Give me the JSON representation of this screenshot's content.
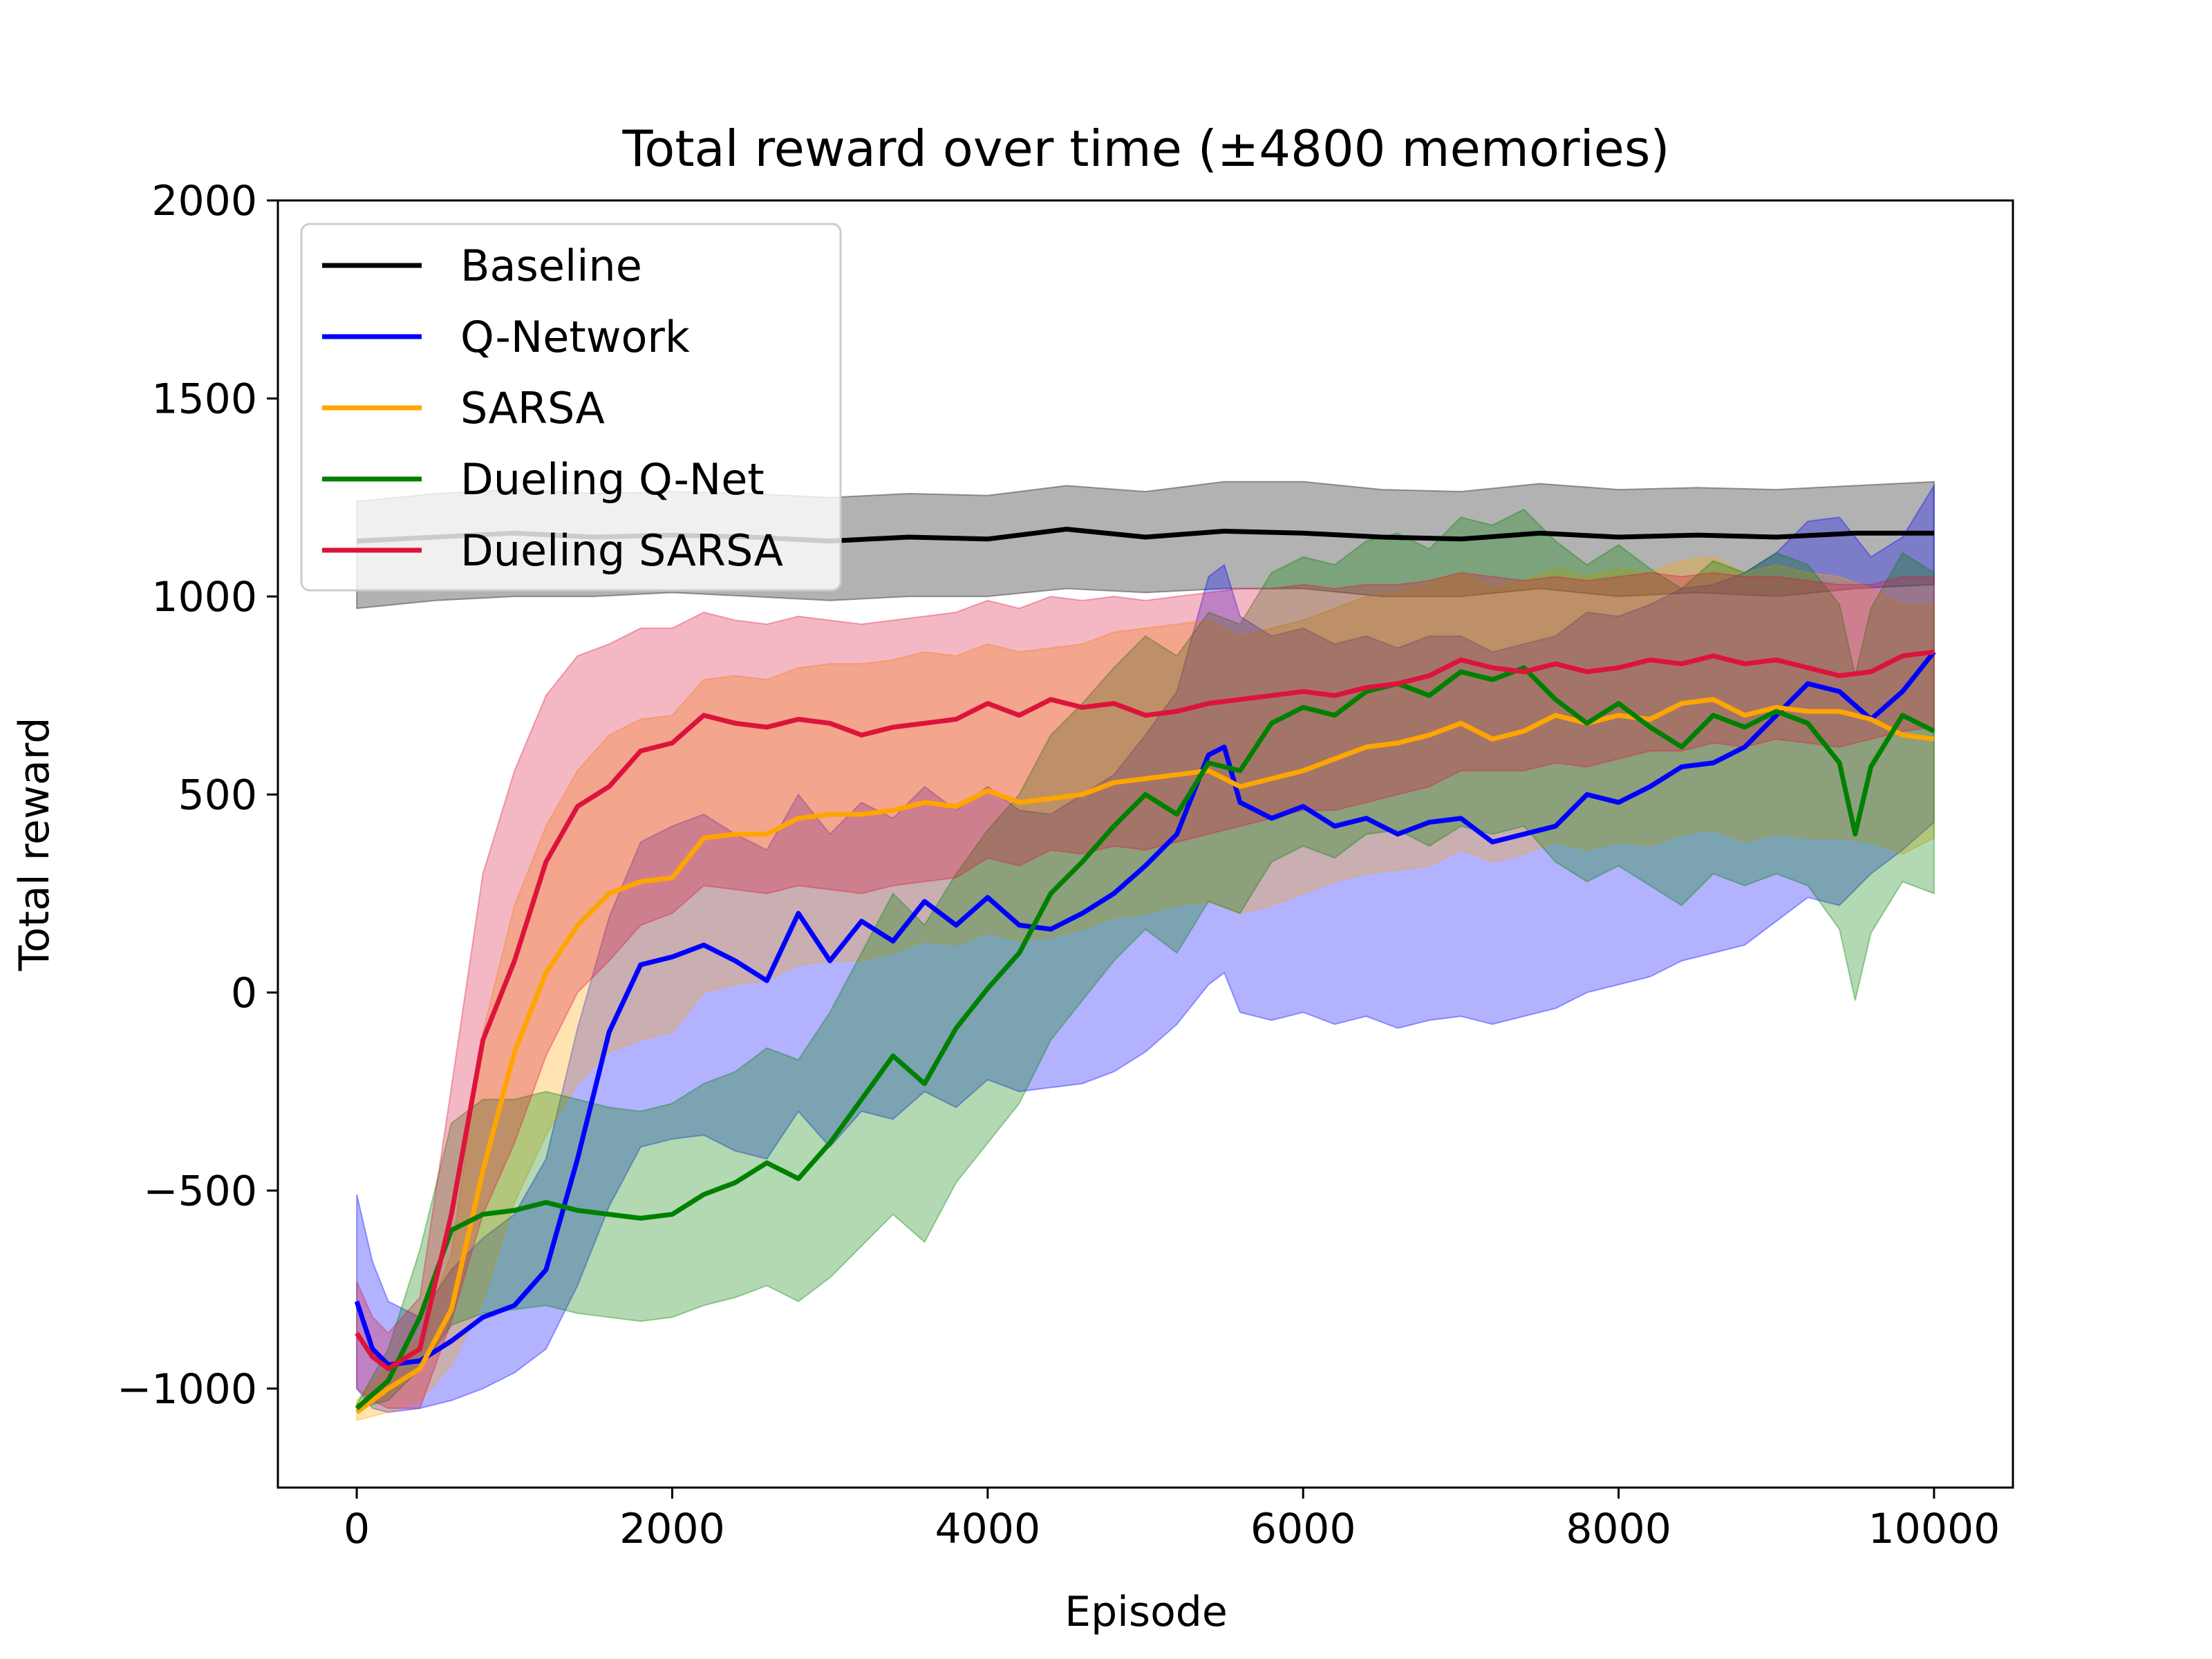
{
  "chart_data": {
    "type": "line",
    "title": "Total reward over time (±4800 memories)",
    "xlabel": "Episode",
    "ylabel": "Total reward",
    "xlim": [
      -500,
      10500
    ],
    "ylim": [
      -1250,
      2000
    ],
    "xticks": [
      0,
      2000,
      4000,
      6000,
      8000,
      10000
    ],
    "yticks": [
      -1000,
      -500,
      0,
      500,
      1000,
      1500,
      2000
    ],
    "xtick_labels": [
      "0",
      "2000",
      "4000",
      "6000",
      "8000",
      "10000"
    ],
    "ytick_labels": [
      "−1000",
      "−500",
      "0",
      "500",
      "1000",
      "1500",
      "2000"
    ],
    "grid": false,
    "legend_position": "upper-left",
    "series": [
      {
        "name": "Baseline",
        "color": "#000000",
        "x": [
          0,
          500,
          1000,
          1500,
          2000,
          2500,
          3000,
          3500,
          4000,
          4500,
          5000,
          5500,
          6000,
          6500,
          7000,
          7500,
          8000,
          8500,
          9000,
          9500,
          10000
        ],
        "y": [
          1140,
          1150,
          1160,
          1150,
          1155,
          1150,
          1140,
          1150,
          1145,
          1170,
          1150,
          1165,
          1160,
          1150,
          1145,
          1160,
          1150,
          1155,
          1150,
          1160,
          1160
        ],
        "lower": [
          970,
          990,
          1000,
          1000,
          1010,
          1000,
          990,
          1000,
          1000,
          1020,
          1010,
          1020,
          1020,
          1000,
          1000,
          1020,
          1000,
          1010,
          1000,
          1020,
          1030
        ],
        "upper": [
          1240,
          1260,
          1270,
          1260,
          1265,
          1260,
          1250,
          1260,
          1255,
          1280,
          1265,
          1290,
          1290,
          1270,
          1265,
          1285,
          1270,
          1275,
          1270,
          1280,
          1290
        ]
      },
      {
        "name": "Q-Network",
        "color": "#0000ff",
        "x": [
          0,
          100,
          200,
          400,
          600,
          800,
          1000,
          1200,
          1400,
          1600,
          1800,
          2000,
          2200,
          2400,
          2600,
          2800,
          3000,
          3200,
          3400,
          3600,
          3800,
          4000,
          4200,
          4400,
          4600,
          4800,
          5000,
          5200,
          5400,
          5500,
          5600,
          5800,
          6000,
          6200,
          6400,
          6600,
          6800,
          7000,
          7200,
          7400,
          7600,
          7800,
          8000,
          8200,
          8400,
          8600,
          8800,
          9000,
          9200,
          9400,
          9600,
          9800,
          10000
        ],
        "y": [
          -780,
          -900,
          -940,
          -930,
          -880,
          -820,
          -790,
          -700,
          -420,
          -100,
          70,
          90,
          120,
          80,
          30,
          200,
          80,
          180,
          130,
          230,
          170,
          240,
          170,
          160,
          200,
          250,
          320,
          400,
          600,
          620,
          480,
          440,
          470,
          420,
          440,
          400,
          430,
          440,
          380,
          400,
          420,
          500,
          480,
          520,
          570,
          580,
          620,
          700,
          780,
          760,
          690,
          760,
          860
        ],
        "lower": [
          -1000,
          -1050,
          -1060,
          -1050,
          -1030,
          -1000,
          -960,
          -900,
          -740,
          -540,
          -390,
          -370,
          -360,
          -400,
          -420,
          -300,
          -390,
          -300,
          -320,
          -250,
          -290,
          -220,
          -250,
          -240,
          -230,
          -200,
          -150,
          -80,
          20,
          50,
          -50,
          -70,
          -50,
          -80,
          -60,
          -90,
          -70,
          -60,
          -80,
          -60,
          -40,
          0,
          20,
          40,
          80,
          100,
          120,
          180,
          240,
          220,
          300,
          360,
          430
        ],
        "upper": [
          -510,
          -680,
          -780,
          -820,
          -700,
          -620,
          -560,
          -420,
          -90,
          190,
          380,
          420,
          450,
          400,
          360,
          500,
          400,
          480,
          440,
          520,
          460,
          520,
          460,
          450,
          500,
          550,
          650,
          760,
          1050,
          1080,
          950,
          900,
          920,
          880,
          900,
          870,
          900,
          900,
          860,
          880,
          900,
          960,
          950,
          980,
          1020,
          1030,
          1060,
          1110,
          1190,
          1200,
          1100,
          1150,
          1280
        ]
      },
      {
        "name": "SARSA",
        "color": "#ffa500",
        "x": [
          0,
          200,
          400,
          600,
          800,
          1000,
          1200,
          1400,
          1600,
          1800,
          2000,
          2200,
          2400,
          2600,
          2800,
          3000,
          3200,
          3400,
          3600,
          3800,
          4000,
          4200,
          4400,
          4600,
          4800,
          5000,
          5200,
          5400,
          5600,
          5800,
          6000,
          6200,
          6400,
          6600,
          6800,
          7000,
          7200,
          7400,
          7600,
          7800,
          8000,
          8200,
          8400,
          8600,
          8800,
          9000,
          9200,
          9400,
          9600,
          9800,
          10000
        ],
        "y": [
          -1060,
          -1000,
          -950,
          -800,
          -450,
          -150,
          50,
          170,
          250,
          280,
          290,
          390,
          400,
          400,
          440,
          450,
          450,
          460,
          480,
          470,
          510,
          480,
          490,
          500,
          530,
          540,
          550,
          560,
          520,
          540,
          560,
          590,
          620,
          630,
          650,
          680,
          640,
          660,
          700,
          680,
          700,
          690,
          730,
          740,
          700,
          720,
          710,
          710,
          690,
          650,
          640
        ],
        "lower": [
          -1080,
          -1060,
          -1030,
          -940,
          -780,
          -530,
          -360,
          -230,
          -150,
          -120,
          -100,
          0,
          20,
          30,
          70,
          80,
          80,
          100,
          130,
          120,
          150,
          130,
          140,
          160,
          190,
          200,
          220,
          230,
          200,
          220,
          250,
          280,
          300,
          310,
          320,
          360,
          330,
          350,
          380,
          360,
          380,
          370,
          400,
          410,
          380,
          400,
          390,
          390,
          380,
          350,
          390
        ],
        "upper": [
          -1030,
          -940,
          -870,
          -660,
          -100,
          220,
          420,
          560,
          650,
          690,
          700,
          790,
          800,
          790,
          820,
          830,
          830,
          840,
          860,
          850,
          880,
          860,
          870,
          880,
          910,
          920,
          930,
          940,
          900,
          920,
          940,
          970,
          1000,
          1010,
          1030,
          1060,
          1020,
          1040,
          1070,
          1050,
          1070,
          1060,
          1090,
          1100,
          1060,
          1080,
          1060,
          1050,
          1020,
          980,
          980
        ]
      },
      {
        "name": "Dueling Q-Net",
        "color": "#008000",
        "x": [
          0,
          200,
          400,
          600,
          800,
          1000,
          1200,
          1400,
          1600,
          1800,
          2000,
          2200,
          2400,
          2600,
          2800,
          3000,
          3200,
          3400,
          3600,
          3800,
          4000,
          4200,
          4400,
          4600,
          4800,
          5000,
          5200,
          5400,
          5600,
          5800,
          6000,
          6200,
          6400,
          6600,
          6800,
          7000,
          7200,
          7400,
          7600,
          7800,
          8000,
          8200,
          8400,
          8600,
          8800,
          9000,
          9200,
          9400,
          9500,
          9600,
          9800,
          10000
        ],
        "y": [
          -1050,
          -980,
          -820,
          -600,
          -560,
          -550,
          -530,
          -550,
          -560,
          -570,
          -560,
          -510,
          -480,
          -430,
          -470,
          -380,
          -270,
          -160,
          -230,
          -90,
          10,
          100,
          250,
          330,
          420,
          500,
          450,
          580,
          560,
          680,
          720,
          700,
          760,
          780,
          750,
          810,
          790,
          820,
          740,
          680,
          730,
          670,
          620,
          700,
          670,
          710,
          680,
          580,
          400,
          570,
          700,
          660
        ],
        "lower": [
          -1050,
          -1030,
          -950,
          -840,
          -810,
          -800,
          -790,
          -810,
          -820,
          -830,
          -820,
          -790,
          -770,
          -740,
          -780,
          -720,
          -640,
          -560,
          -630,
          -480,
          -380,
          -280,
          -120,
          -20,
          80,
          160,
          100,
          230,
          200,
          330,
          370,
          340,
          400,
          410,
          370,
          420,
          400,
          420,
          330,
          280,
          320,
          270,
          220,
          300,
          270,
          300,
          270,
          160,
          -20,
          150,
          280,
          250
        ],
        "upper": [
          -1040,
          -900,
          -650,
          -330,
          -270,
          -270,
          -250,
          -270,
          -290,
          -300,
          -280,
          -230,
          -200,
          -140,
          -170,
          -50,
          100,
          250,
          170,
          300,
          410,
          500,
          650,
          730,
          820,
          900,
          850,
          960,
          930,
          1060,
          1100,
          1080,
          1140,
          1160,
          1120,
          1200,
          1180,
          1220,
          1140,
          1080,
          1130,
          1070,
          1020,
          1090,
          1060,
          1110,
          1080,
          980,
          800,
          970,
          1110,
          1060
        ]
      },
      {
        "name": "Dueling SARSA",
        "color": "#dc143c",
        "x": [
          0,
          100,
          200,
          400,
          600,
          800,
          1000,
          1200,
          1400,
          1600,
          1800,
          2000,
          2200,
          2400,
          2600,
          2800,
          3000,
          3200,
          3400,
          3600,
          3800,
          4000,
          4200,
          4400,
          4600,
          4800,
          5000,
          5200,
          5400,
          5600,
          5800,
          6000,
          6200,
          6400,
          6600,
          6800,
          7000,
          7200,
          7400,
          7600,
          7800,
          8000,
          8200,
          8400,
          8600,
          8800,
          9000,
          9200,
          9400,
          9600,
          9800,
          10000
        ],
        "y": [
          -860,
          -920,
          -950,
          -900,
          -560,
          -120,
          80,
          330,
          470,
          520,
          610,
          630,
          700,
          680,
          670,
          690,
          680,
          650,
          670,
          680,
          690,
          730,
          700,
          740,
          720,
          730,
          700,
          710,
          730,
          740,
          750,
          760,
          750,
          770,
          780,
          800,
          840,
          820,
          810,
          830,
          810,
          820,
          840,
          830,
          850,
          830,
          840,
          820,
          800,
          810,
          850,
          860
        ],
        "lower": [
          -1000,
          -1030,
          -1050,
          -1050,
          -830,
          -560,
          -380,
          -160,
          0,
          80,
          170,
          200,
          270,
          260,
          250,
          270,
          260,
          250,
          270,
          280,
          290,
          340,
          320,
          360,
          350,
          370,
          360,
          380,
          400,
          420,
          440,
          460,
          460,
          480,
          500,
          520,
          560,
          560,
          560,
          580,
          570,
          590,
          610,
          610,
          630,
          620,
          640,
          630,
          620,
          640,
          660,
          670
        ],
        "upper": [
          -730,
          -820,
          -860,
          -770,
          -240,
          300,
          560,
          750,
          850,
          880,
          920,
          920,
          960,
          940,
          930,
          950,
          940,
          930,
          940,
          950,
          960,
          990,
          970,
          1000,
          990,
          1000,
          990,
          1000,
          1010,
          1020,
          1020,
          1030,
          1020,
          1030,
          1030,
          1040,
          1060,
          1050,
          1040,
          1050,
          1040,
          1050,
          1060,
          1050,
          1060,
          1050,
          1050,
          1040,
          1030,
          1030,
          1050,
          1050
        ]
      }
    ]
  }
}
